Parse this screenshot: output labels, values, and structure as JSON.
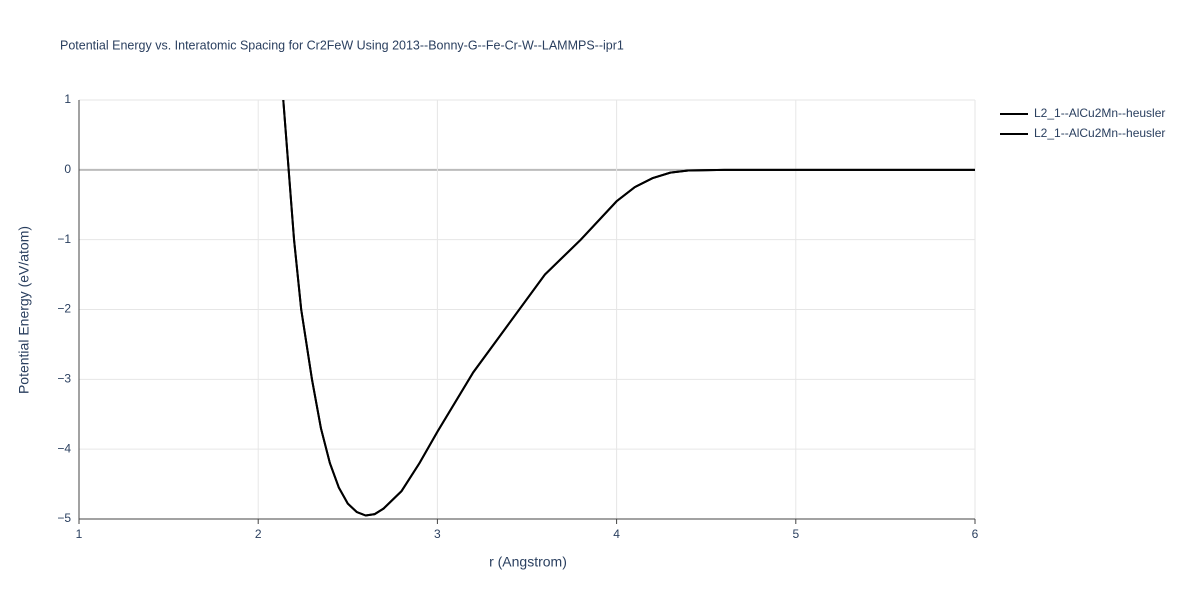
{
  "chart_data": {
    "type": "line",
    "title": "Potential Energy vs. Interatomic Spacing for Cr2FeW Using 2013--Bonny-G--Fe-Cr-W--LAMMPS--ipr1",
    "xlabel": "r (Angstrom)",
    "ylabel": "Potential Energy (eV/atom)",
    "x": [
      2.14,
      2.2,
      2.24,
      2.3,
      2.35,
      2.4,
      2.45,
      2.5,
      2.55,
      2.6,
      2.65,
      2.7,
      2.8,
      2.9,
      3.0,
      3.2,
      3.4,
      3.6,
      3.8,
      4.0,
      4.1,
      4.2,
      4.3,
      4.4,
      4.6,
      5.0,
      6.0
    ],
    "series": [
      {
        "name": "L2_1--AlCu2Mn--heusler",
        "color": "#000000",
        "values": [
          1.0,
          -1.0,
          -2.0,
          -3.0,
          -3.7,
          -4.2,
          -4.55,
          -4.78,
          -4.9,
          -4.95,
          -4.93,
          -4.85,
          -4.6,
          -4.2,
          -3.75,
          -2.9,
          -2.2,
          -1.5,
          -1.0,
          -0.45,
          -0.25,
          -0.12,
          -0.04,
          -0.01,
          0,
          0,
          0
        ]
      },
      {
        "name": "L2_1--AlCu2Mn--heusler",
        "color": "#000000",
        "values": [
          1.0,
          -1.0,
          -2.0,
          -3.0,
          -3.7,
          -4.2,
          -4.55,
          -4.78,
          -4.9,
          -4.95,
          -4.93,
          -4.85,
          -4.6,
          -4.2,
          -3.75,
          -2.9,
          -2.2,
          -1.5,
          -1.0,
          -0.45,
          -0.25,
          -0.12,
          -0.04,
          -0.01,
          0,
          0,
          0
        ]
      }
    ],
    "xlim": [
      1,
      6
    ],
    "xticks": [
      1,
      2,
      3,
      4,
      5,
      6
    ],
    "ylim": [
      -5,
      1
    ],
    "yticks": [
      {
        "value": -5,
        "label": "−5"
      },
      {
        "value": -4,
        "label": "−4"
      },
      {
        "value": -3,
        "label": "−3"
      },
      {
        "value": -2,
        "label": "−2"
      },
      {
        "value": -1,
        "label": "−1"
      },
      0,
      1
    ],
    "grid": true,
    "legend": "top-right"
  }
}
